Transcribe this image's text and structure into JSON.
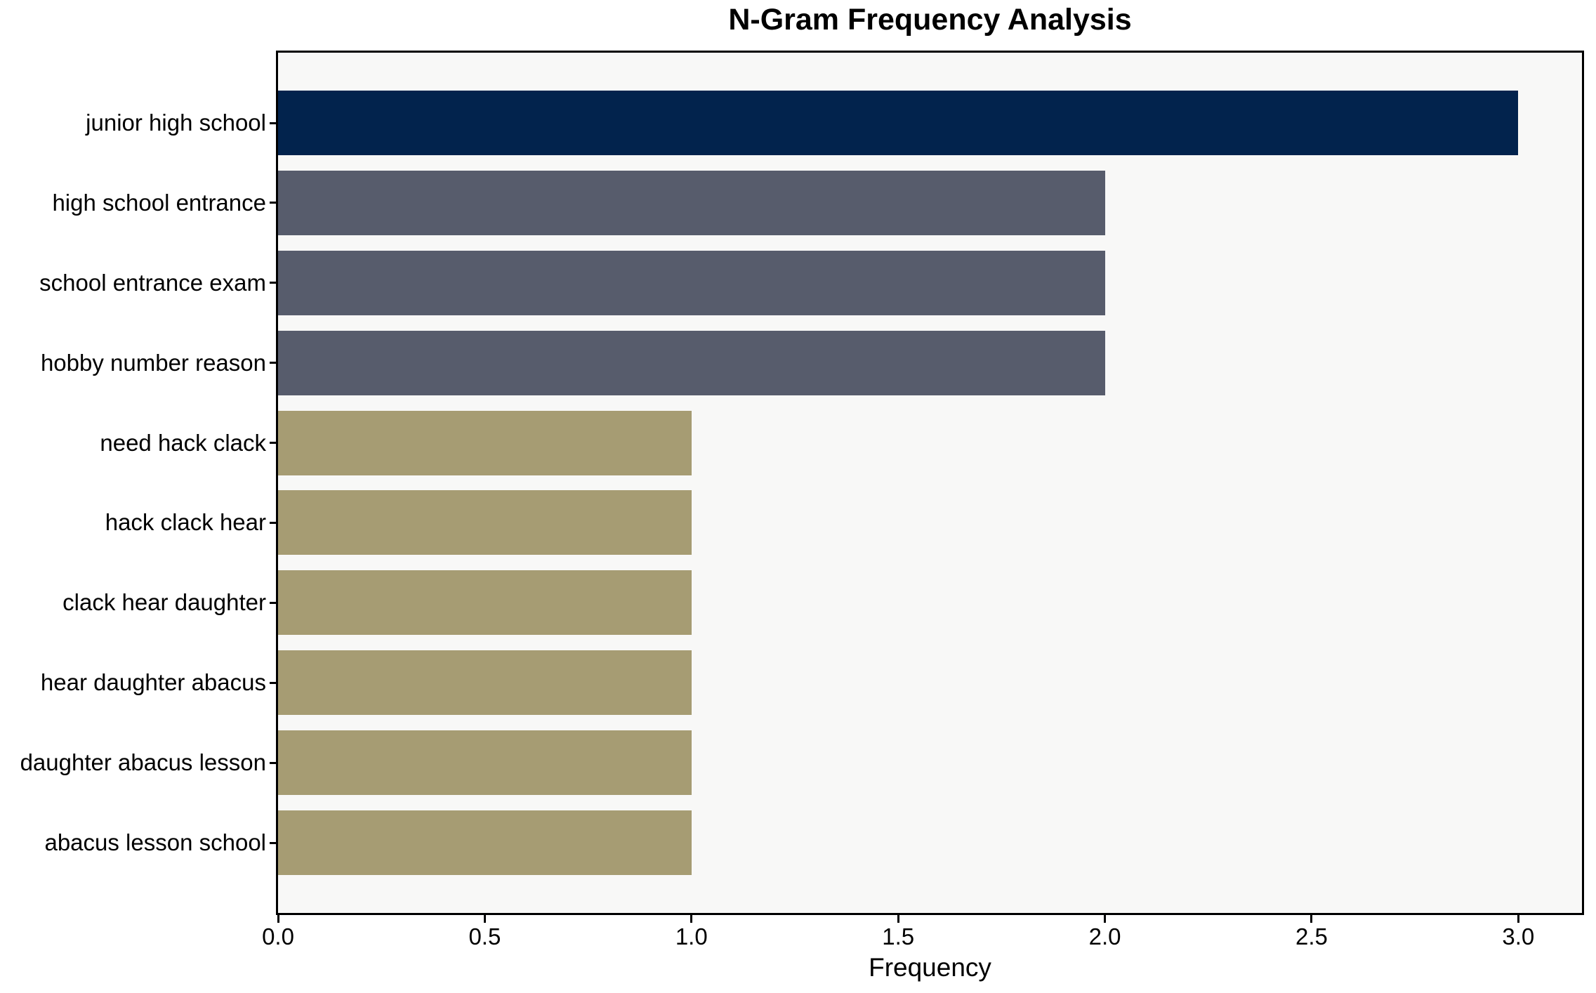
{
  "chart_data": {
    "type": "bar",
    "orientation": "horizontal",
    "title": "N-Gram Frequency Analysis",
    "xlabel": "Frequency",
    "ylabel": "",
    "categories": [
      "junior high school",
      "high school entrance",
      "school entrance exam",
      "hobby number reason",
      "need hack clack",
      "hack clack hear",
      "clack hear daughter",
      "hear daughter abacus",
      "daughter abacus lesson",
      "abacus lesson school"
    ],
    "values": [
      3,
      2,
      2,
      2,
      1,
      1,
      1,
      1,
      1,
      1
    ],
    "bar_colors": [
      "#02234d",
      "#575c6c",
      "#575c6c",
      "#575c6c",
      "#a69c73",
      "#a69c73",
      "#a69c73",
      "#a69c73",
      "#a69c73",
      "#a69c73"
    ],
    "x_ticks": [
      {
        "value": 0.0,
        "label": "0.0"
      },
      {
        "value": 0.5,
        "label": "0.5"
      },
      {
        "value": 1.0,
        "label": "1.0"
      },
      {
        "value": 1.5,
        "label": "1.5"
      },
      {
        "value": 2.0,
        "label": "2.0"
      },
      {
        "value": 2.5,
        "label": "2.5"
      },
      {
        "value": 3.0,
        "label": "3.0"
      }
    ],
    "xlim": [
      0,
      3.154
    ],
    "grid": false,
    "legend": "none",
    "colors": {
      "count_3_bar": "#02234d",
      "count_2_bar": "#575c6c",
      "count_1_bar": "#a69c73",
      "plot_background": "#f8f8f7",
      "figure_background": "#ffffff",
      "frame": "#000000",
      "text": "#000000"
    }
  }
}
